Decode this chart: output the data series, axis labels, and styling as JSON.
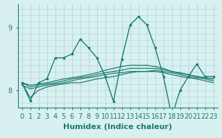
{
  "xlabel": "Humidex (Indice chaleur)",
  "background_color": "#d8f0f0",
  "grid_color": "#b8d8d8",
  "line_color": "#1a7a6e",
  "xlim": [
    -0.5,
    23.5
  ],
  "ylim": [
    7.72,
    9.38
  ],
  "xticks": [
    0,
    1,
    2,
    3,
    4,
    5,
    6,
    7,
    8,
    9,
    10,
    11,
    12,
    13,
    14,
    15,
    16,
    17,
    18,
    19,
    20,
    21,
    22,
    23
  ],
  "yticks": [
    8,
    9
  ],
  "lines": [
    {
      "x": [
        0,
        1,
        2,
        3,
        4,
        5,
        6,
        7,
        8,
        9,
        10,
        11,
        12,
        13,
        14,
        15,
        16,
        17,
        18,
        19,
        20,
        21,
        22,
        23
      ],
      "y": [
        8.12,
        7.83,
        8.12,
        8.18,
        8.52,
        8.52,
        8.58,
        8.82,
        8.68,
        8.52,
        8.22,
        7.82,
        8.5,
        9.05,
        9.18,
        9.05,
        8.68,
        8.22,
        7.58,
        8.0,
        8.22,
        8.42,
        8.22,
        8.22
      ],
      "has_markers": true,
      "lw": 1.0
    },
    {
      "x": [
        0,
        1,
        2,
        3,
        4,
        5,
        6,
        7,
        8,
        9,
        10,
        11,
        12,
        13,
        14,
        15,
        16,
        17,
        18,
        19,
        20,
        21,
        22,
        23
      ],
      "y": [
        8.12,
        7.88,
        8.0,
        8.05,
        8.08,
        8.1,
        8.12,
        8.12,
        8.15,
        8.18,
        8.2,
        8.22,
        8.25,
        8.28,
        8.3,
        8.3,
        8.32,
        8.3,
        8.28,
        8.25,
        8.22,
        8.2,
        8.18,
        8.15
      ],
      "has_markers": false,
      "lw": 0.9
    },
    {
      "x": [
        0,
        1,
        2,
        3,
        4,
        5,
        6,
        7,
        8,
        9,
        10,
        11,
        12,
        13,
        14,
        15,
        16,
        17,
        18,
        19,
        20,
        21,
        22,
        23
      ],
      "y": [
        8.12,
        8.05,
        8.08,
        8.1,
        8.12,
        8.15,
        8.18,
        8.2,
        8.22,
        8.25,
        8.28,
        8.3,
        8.32,
        8.35,
        8.35,
        8.35,
        8.35,
        8.33,
        8.3,
        8.28,
        8.25,
        8.22,
        8.2,
        8.18
      ],
      "has_markers": false,
      "lw": 0.9
    },
    {
      "x": [
        0,
        1,
        2,
        3,
        4,
        5,
        6,
        7,
        8,
        9,
        10,
        11,
        12,
        13,
        14,
        15,
        16,
        17,
        18,
        19,
        20,
        21,
        22,
        23
      ],
      "y": [
        8.08,
        8.02,
        8.05,
        8.08,
        8.1,
        8.12,
        8.15,
        8.18,
        8.2,
        8.22,
        8.25,
        8.27,
        8.28,
        8.3,
        8.3,
        8.3,
        8.3,
        8.28,
        8.25,
        8.22,
        8.2,
        8.18,
        8.15,
        8.12
      ],
      "has_markers": false,
      "lw": 0.9
    },
    {
      "x": [
        0,
        1,
        2,
        3,
        4,
        5,
        6,
        7,
        8,
        9,
        10,
        11,
        12,
        13,
        14,
        15,
        16,
        17,
        18,
        19,
        20,
        21,
        22,
        23
      ],
      "y": [
        8.12,
        8.08,
        8.1,
        8.12,
        8.15,
        8.18,
        8.2,
        8.22,
        8.25,
        8.28,
        8.32,
        8.35,
        8.38,
        8.4,
        8.4,
        8.4,
        8.38,
        8.35,
        8.3,
        8.27,
        8.25,
        8.22,
        8.2,
        8.18
      ],
      "has_markers": false,
      "lw": 0.9
    }
  ],
  "fontsize_xlabel": 8,
  "tick_fontsize": 7
}
